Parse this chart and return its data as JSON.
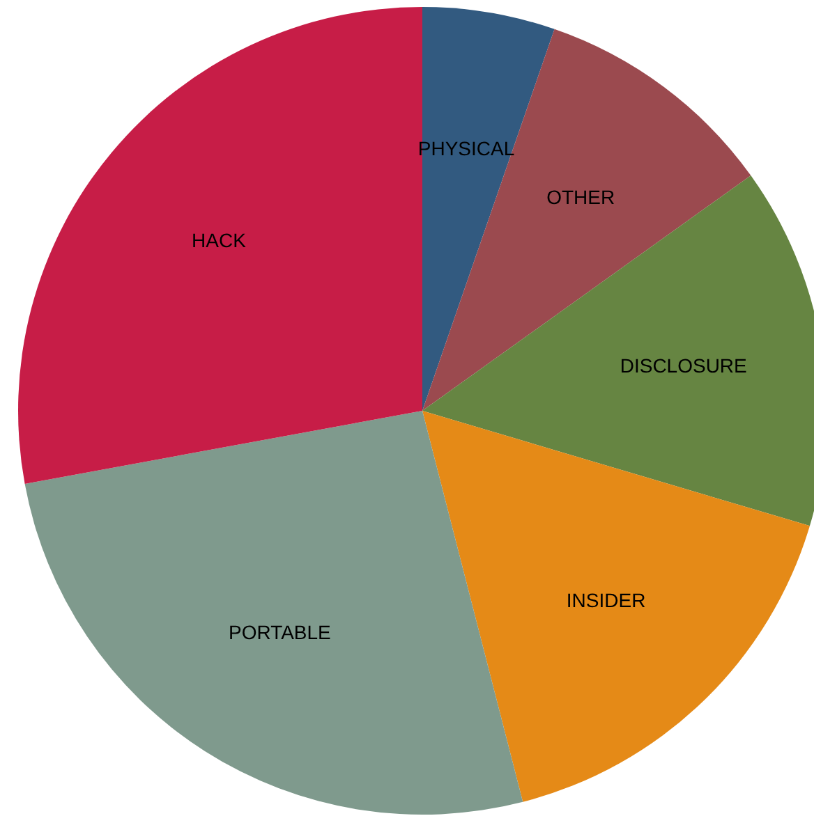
{
  "chart_data": {
    "type": "pie",
    "categories": [
      "PHYSICAL",
      "OTHER",
      "DISCLOSURE",
      "INSIDER",
      "PORTABLE",
      "HACK"
    ],
    "values": [
      5.3,
      9.8,
      14.5,
      16.4,
      26.1,
      27.9
    ],
    "colors": [
      "#325a80",
      "#9b4a4f",
      "#668542",
      "#e58a17",
      "#7f9a8d",
      "#c71d47"
    ]
  }
}
